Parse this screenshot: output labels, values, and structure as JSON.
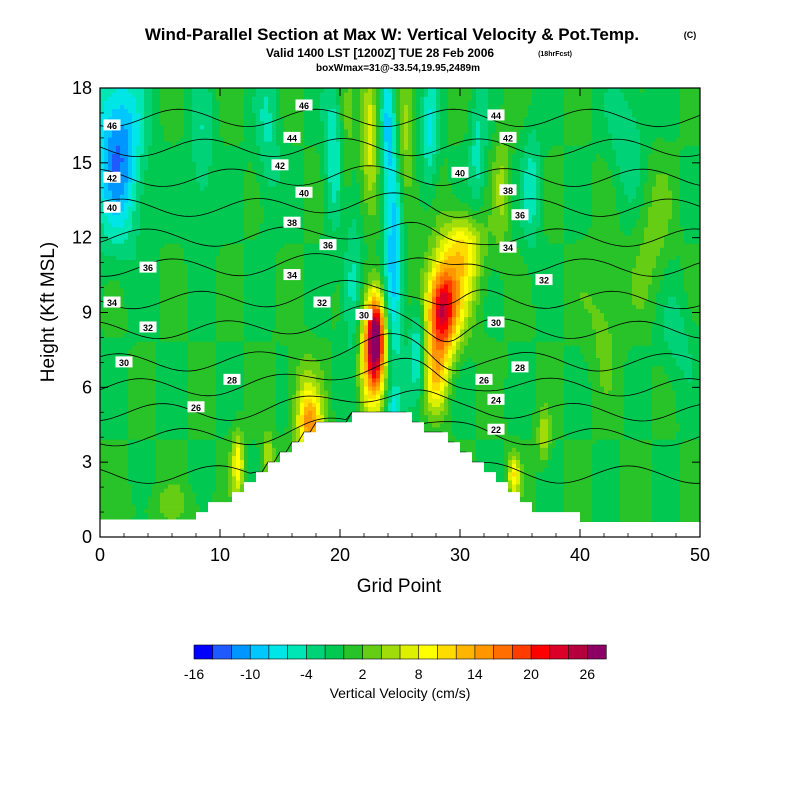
{
  "header": {
    "title": "Wind-Parallel Section at Max W: Vertical Velocity & Pot.Temp.",
    "copyright": "(C)",
    "valid": "Valid 1400 LST [1200Z] TUE 28 Feb 2006",
    "forecast": "(18hrFcst)",
    "box_info": "boxWmax=31@-33.54,19.95,2489m"
  },
  "chart_data": {
    "type": "heatmap",
    "xlabel": "Grid Point",
    "ylabel": "Height (Kft MSL)",
    "xlim": [
      0,
      50
    ],
    "ylim": [
      0,
      18
    ],
    "x_ticks": [
      "0",
      "10",
      "20",
      "30",
      "40",
      "50"
    ],
    "y_ticks": [
      "0",
      "3",
      "6",
      "9",
      "12",
      "15",
      "18"
    ],
    "x_tick_values": [
      0,
      10,
      20,
      30,
      40,
      50
    ],
    "y_tick_values": [
      0,
      3,
      6,
      9,
      12,
      15,
      18
    ],
    "colorbar": {
      "label": "Vertical Velocity (cm/s)",
      "tick_labels": [
        "-16",
        "-10",
        "-4",
        "2",
        "8",
        "14",
        "20",
        "26"
      ],
      "tick_values": [
        -16,
        -10,
        -4,
        2,
        8,
        14,
        20,
        26
      ],
      "levels": [
        -16,
        -14,
        -12,
        -10,
        -8,
        -6,
        -4,
        -2,
        0,
        2,
        4,
        6,
        8,
        10,
        12,
        14,
        16,
        18,
        20,
        22,
        24,
        26,
        28
      ],
      "colors": [
        "#0000ff",
        "#1e5aff",
        "#0096ff",
        "#00c8ff",
        "#00e6e6",
        "#00e6b4",
        "#00d278",
        "#00c850",
        "#28c328",
        "#64cd14",
        "#a0dc0a",
        "#dcf000",
        "#ffff00",
        "#ffdc00",
        "#ffb400",
        "#ff9600",
        "#ff6e00",
        "#ff3c00",
        "#ff0000",
        "#dc0028",
        "#b4003c",
        "#8c0064"
      ]
    },
    "terrain": [
      {
        "x": 0,
        "h": 0.7
      },
      {
        "x": 8,
        "h": 0.7
      },
      {
        "x": 8,
        "h": 1.0
      },
      {
        "x": 9,
        "h": 1.0
      },
      {
        "x": 9,
        "h": 1.4
      },
      {
        "x": 11,
        "h": 1.4
      },
      {
        "x": 11,
        "h": 1.8
      },
      {
        "x": 12,
        "h": 1.8
      },
      {
        "x": 12,
        "h": 2.2
      },
      {
        "x": 13,
        "h": 2.2
      },
      {
        "x": 13,
        "h": 2.6
      },
      {
        "x": 14,
        "h": 2.6
      },
      {
        "x": 14,
        "h": 3.0
      },
      {
        "x": 15,
        "h": 3.0
      },
      {
        "x": 15,
        "h": 3.4
      },
      {
        "x": 16,
        "h": 3.4
      },
      {
        "x": 16,
        "h": 3.8
      },
      {
        "x": 17,
        "h": 3.8
      },
      {
        "x": 17,
        "h": 4.2
      },
      {
        "x": 18,
        "h": 4.2
      },
      {
        "x": 18,
        "h": 4.6
      },
      {
        "x": 21,
        "h": 4.6
      },
      {
        "x": 21,
        "h": 5.0
      },
      {
        "x": 26,
        "h": 5.0
      },
      {
        "x": 26,
        "h": 4.6
      },
      {
        "x": 27,
        "h": 4.6
      },
      {
        "x": 27,
        "h": 4.2
      },
      {
        "x": 29,
        "h": 4.2
      },
      {
        "x": 29,
        "h": 3.8
      },
      {
        "x": 30,
        "h": 3.8
      },
      {
        "x": 30,
        "h": 3.4
      },
      {
        "x": 31,
        "h": 3.4
      },
      {
        "x": 31,
        "h": 3.0
      },
      {
        "x": 32,
        "h": 3.0
      },
      {
        "x": 32,
        "h": 2.6
      },
      {
        "x": 33,
        "h": 2.6
      },
      {
        "x": 33,
        "h": 2.2
      },
      {
        "x": 34,
        "h": 2.2
      },
      {
        "x": 34,
        "h": 1.8
      },
      {
        "x": 35,
        "h": 1.8
      },
      {
        "x": 35,
        "h": 1.4
      },
      {
        "x": 36,
        "h": 1.4
      },
      {
        "x": 36,
        "h": 1.0
      },
      {
        "x": 40,
        "h": 1.0
      },
      {
        "x": 40,
        "h": 0.6
      },
      {
        "x": 50,
        "h": 0.6
      }
    ],
    "w_features": [
      {
        "x": 23,
        "y": 8.0,
        "sx": 0.8,
        "sy": 1.8,
        "w": 26
      },
      {
        "x": 22.5,
        "y": 7.0,
        "sx": 1.0,
        "sy": 2.5,
        "w": 8
      },
      {
        "x": 28.5,
        "y": 9.0,
        "sx": 1.3,
        "sy": 1.7,
        "w": 21
      },
      {
        "x": 29.5,
        "y": 10.5,
        "sx": 2.0,
        "sy": 2.0,
        "w": 8
      },
      {
        "x": 28,
        "y": 6.5,
        "sx": 1.0,
        "sy": 1.5,
        "w": 10
      },
      {
        "x": 30.5,
        "y": 11.8,
        "sx": 1.5,
        "sy": 1.2,
        "w": 6
      },
      {
        "x": 17.5,
        "y": 4.5,
        "sx": 1.0,
        "sy": 1.2,
        "w": 14
      },
      {
        "x": 17,
        "y": 6.0,
        "sx": 1.2,
        "sy": 1.5,
        "w": 4
      },
      {
        "x": 11.5,
        "y": 3.0,
        "sx": 0.5,
        "sy": 1.3,
        "w": 9
      },
      {
        "x": 14,
        "y": 3.3,
        "sx": 0.5,
        "sy": 0.9,
        "w": 6
      },
      {
        "x": 34.5,
        "y": 2.5,
        "sx": 0.5,
        "sy": 0.8,
        "w": 9
      },
      {
        "x": 37,
        "y": 4.0,
        "sx": 0.5,
        "sy": 1.0,
        "w": 6
      },
      {
        "x": 22.5,
        "y": 16.5,
        "sx": 0.7,
        "sy": 2.5,
        "w": 8
      },
      {
        "x": 25.5,
        "y": 15.0,
        "sx": 0.7,
        "sy": 3.0,
        "w": 5
      },
      {
        "x": 33.5,
        "y": 14.0,
        "sx": 0.7,
        "sy": 2.5,
        "w": 4
      },
      {
        "x": 20.5,
        "y": 15.0,
        "sx": 0.6,
        "sy": 3.0,
        "w": 3
      },
      {
        "x": 42,
        "y": 9.0,
        "sx": 1.5,
        "sy": 2.5,
        "w": 3
      },
      {
        "x": 46,
        "y": 12.0,
        "sx": 1.5,
        "sy": 3.0,
        "w": 3
      },
      {
        "x": 1.5,
        "y": 15.5,
        "sx": 2.0,
        "sy": 3.5,
        "w": -12
      },
      {
        "x": 24.5,
        "y": 11.0,
        "sx": 0.8,
        "sy": 4.0,
        "w": -10
      },
      {
        "x": 24,
        "y": 16.5,
        "sx": 0.6,
        "sy": 2.5,
        "w": -8
      },
      {
        "x": 26.5,
        "y": 7.5,
        "sx": 0.7,
        "sy": 2.0,
        "w": -7
      },
      {
        "x": 21,
        "y": 10.0,
        "sx": 0.8,
        "sy": 2.5,
        "w": -6
      },
      {
        "x": 19.5,
        "y": 15.5,
        "sx": 0.8,
        "sy": 3.0,
        "w": -6
      },
      {
        "x": 27.5,
        "y": 16.0,
        "sx": 0.7,
        "sy": 2.5,
        "w": -6
      },
      {
        "x": 31.5,
        "y": 15.5,
        "sx": 0.7,
        "sy": 2.5,
        "w": -5
      },
      {
        "x": 36,
        "y": 14.0,
        "sx": 0.8,
        "sy": 2.5,
        "w": -5
      },
      {
        "x": 14,
        "y": 16.0,
        "sx": 1.0,
        "sy": 3.0,
        "w": -4
      },
      {
        "x": 8.5,
        "y": 15.0,
        "sx": 1.0,
        "sy": 3.0,
        "w": -4
      },
      {
        "x": 44,
        "y": 16.0,
        "sx": 1.5,
        "sy": 2.5,
        "w": -4
      },
      {
        "x": 48,
        "y": 8.0,
        "sx": 1.5,
        "sy": 2.0,
        "w": -3
      },
      {
        "x": 6,
        "y": 1.3,
        "sx": 3.0,
        "sy": 0.8,
        "w": 2
      },
      {
        "x": 24.5,
        "y": 5.2,
        "sx": 0.6,
        "sy": 0.8,
        "w": -5
      }
    ],
    "isentropes": [
      {
        "label": "22",
        "y": 2.5,
        "lx": 33,
        "ly": 4.3
      },
      {
        "label": "24",
        "y": 4.0,
        "lx": 33,
        "ly": 5.5
      },
      {
        "label": "26",
        "y": 5.0,
        "lx": 8,
        "ly": 5.2
      },
      {
        "label": "28",
        "y": 6.0,
        "lx": 11,
        "ly": 6.3
      },
      {
        "label": "30",
        "y": 7.0,
        "lx": 2,
        "ly": 7.0
      },
      {
        "label": "32",
        "y": 8.3,
        "lx": 4,
        "ly": 8.4
      },
      {
        "label": "34",
        "y": 9.5,
        "lx": 1,
        "ly": 9.4
      },
      {
        "label": "36",
        "y": 10.8,
        "lx": 4,
        "ly": 10.8
      },
      {
        "label": "38",
        "y": 12.0,
        "lx": 16,
        "ly": 12.6
      },
      {
        "label": "40",
        "y": 13.2,
        "lx": 1,
        "ly": 13.2
      },
      {
        "label": "42",
        "y": 14.4,
        "lx": 1,
        "ly": 14.4
      },
      {
        "label": "44",
        "y": 15.6,
        "lx": 16,
        "ly": 16.0
      },
      {
        "label": "46",
        "y": 16.8,
        "lx": 1,
        "ly": 16.5
      }
    ],
    "isentrope_labels_extra": [
      {
        "label": "46",
        "x": 17,
        "y": 17.3
      },
      {
        "label": "42",
        "x": 15,
        "y": 14.9
      },
      {
        "label": "40",
        "x": 17,
        "y": 13.8
      },
      {
        "label": "36",
        "x": 19,
        "y": 11.7
      },
      {
        "label": "34",
        "x": 16,
        "y": 10.5
      },
      {
        "label": "32",
        "x": 18.5,
        "y": 9.4
      },
      {
        "label": "30",
        "x": 22,
        "y": 8.9
      },
      {
        "label": "44",
        "x": 33,
        "y": 16.9
      },
      {
        "label": "42",
        "x": 34,
        "y": 16.0
      },
      {
        "label": "40",
        "x": 30,
        "y": 14.6
      },
      {
        "label": "38",
        "x": 34,
        "y": 13.9
      },
      {
        "label": "36",
        "x": 35,
        "y": 12.9
      },
      {
        "label": "34",
        "x": 34,
        "y": 11.6
      },
      {
        "label": "32",
        "x": 37,
        "y": 10.3
      },
      {
        "label": "30",
        "x": 33,
        "y": 8.6
      },
      {
        "label": "28",
        "x": 35,
        "y": 6.8
      },
      {
        "label": "26",
        "x": 32,
        "y": 6.3
      }
    ]
  }
}
